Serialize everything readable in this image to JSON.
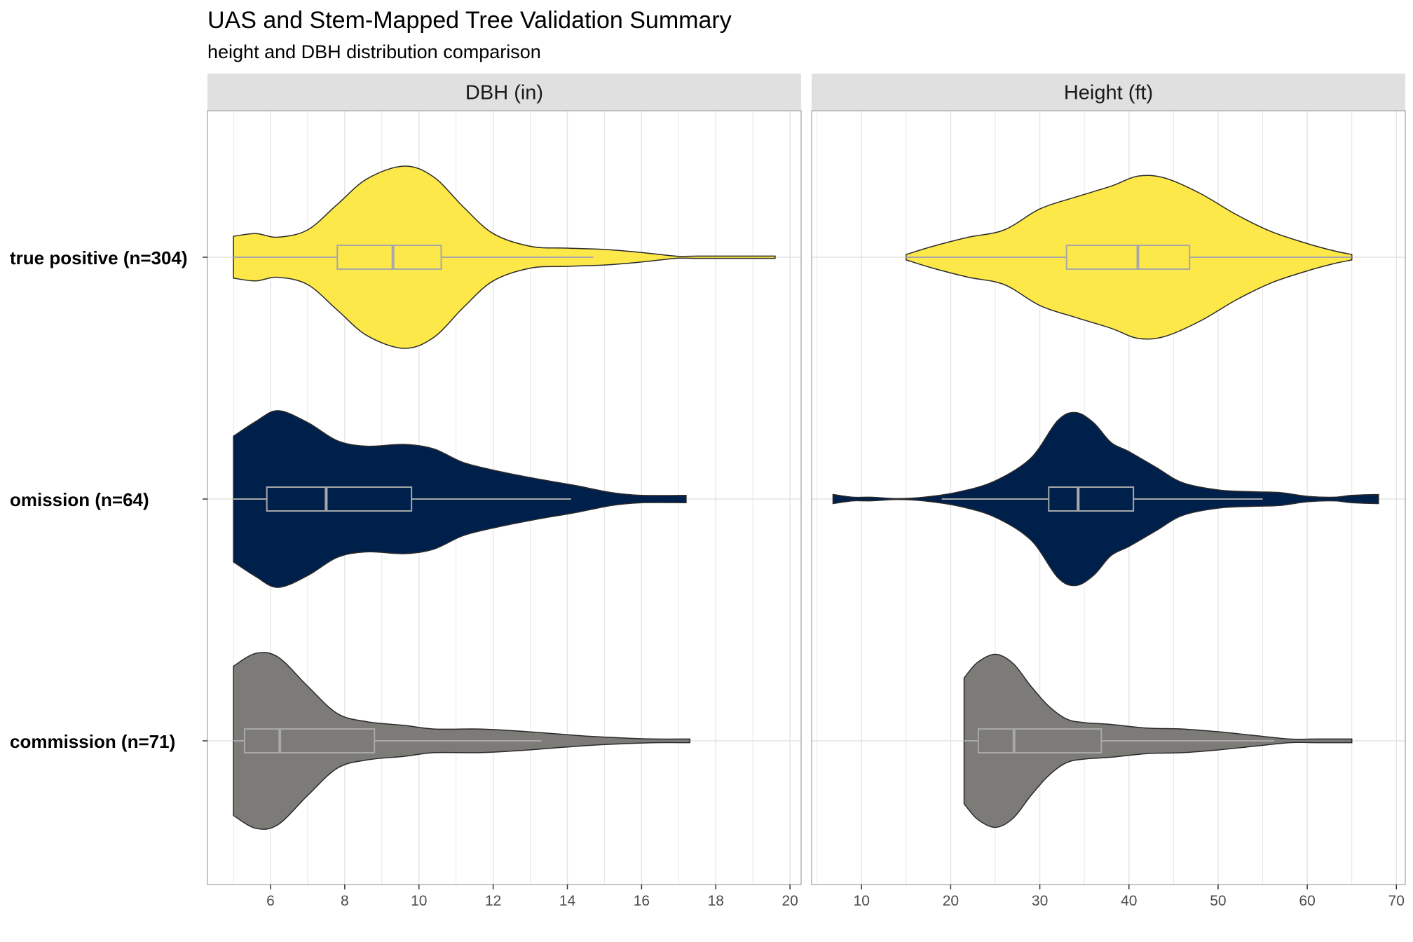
{
  "chart_data": {
    "type": "violin",
    "title": "UAS and Stem-Mapped Tree Validation Summary",
    "subtitle": "height and DBH distribution comparison",
    "categories": [
      "true positive (n=304)",
      "omission (n=64)",
      "commission (n=71)"
    ],
    "grid": true,
    "legend": "none",
    "colors": {
      "true positive (n=304)": "#FDE84A",
      "omission (n=64)": "#00204C",
      "commission (n=71)": "#7C7B78",
      "box": "#A8A8A8",
      "outline": "#2a2a2a",
      "grid": "#e3e3e3",
      "strip": "#e0e0e0",
      "panel_border": "#b3b3b3"
    },
    "panels": [
      {
        "label": "DBH (in)",
        "xlim": [
          4.3,
          20.3
        ],
        "xticks": [
          6,
          8,
          10,
          12,
          14,
          16,
          18,
          20
        ],
        "series": [
          {
            "name": "true positive (n=304)",
            "range": [
              5.0,
              19.6
            ],
            "density": [
              [
                5.0,
                0.23
              ],
              [
                5.6,
                0.26
              ],
              [
                6.2,
                0.22
              ],
              [
                7.0,
                0.3
              ],
              [
                7.8,
                0.58
              ],
              [
                8.6,
                0.86
              ],
              [
                9.6,
                1.0
              ],
              [
                10.4,
                0.88
              ],
              [
                11.2,
                0.55
              ],
              [
                12.0,
                0.26
              ],
              [
                13.0,
                0.12
              ],
              [
                14.0,
                0.1
              ],
              [
                15.0,
                0.085
              ],
              [
                15.8,
                0.06
              ],
              [
                16.5,
                0.03
              ],
              [
                17.0,
                0.01
              ],
              [
                17.5,
                0.012
              ],
              [
                18.5,
                0.012
              ],
              [
                19.6,
                0.012
              ]
            ],
            "box": {
              "q1": 7.8,
              "median": 9.3,
              "q3": 10.6,
              "whisker_low": 5.0,
              "whisker_high": 14.7
            }
          },
          {
            "name": "omission (n=64)",
            "range": [
              5.0,
              17.2
            ],
            "density": [
              [
                5.0,
                0.69
              ],
              [
                5.6,
                0.85
              ],
              [
                6.2,
                0.97
              ],
              [
                7.0,
                0.84
              ],
              [
                7.8,
                0.64
              ],
              [
                8.6,
                0.58
              ],
              [
                9.6,
                0.6
              ],
              [
                10.4,
                0.55
              ],
              [
                11.2,
                0.4
              ],
              [
                12.2,
                0.3
              ],
              [
                13.2,
                0.22
              ],
              [
                14.2,
                0.15
              ],
              [
                15.2,
                0.07
              ],
              [
                16.0,
                0.04
              ],
              [
                17.2,
                0.04
              ]
            ],
            "box": {
              "q1": 5.9,
              "median": 7.5,
              "q3": 9.8,
              "whisker_low": 5.0,
              "whisker_high": 14.1
            }
          },
          {
            "name": "commission (n=71)",
            "range": [
              5.0,
              17.3
            ],
            "density": [
              [
                5.0,
                0.82
              ],
              [
                5.6,
                0.96
              ],
              [
                6.2,
                0.92
              ],
              [
                7.0,
                0.6
              ],
              [
                7.8,
                0.3
              ],
              [
                8.6,
                0.21
              ],
              [
                9.6,
                0.17
              ],
              [
                10.4,
                0.13
              ],
              [
                11.6,
                0.13
              ],
              [
                12.6,
                0.11
              ],
              [
                13.6,
                0.08
              ],
              [
                14.6,
                0.05
              ],
              [
                15.6,
                0.03
              ],
              [
                16.4,
                0.02
              ],
              [
                17.3,
                0.02
              ]
            ],
            "box": {
              "q1": 5.3,
              "median": 6.25,
              "q3": 8.8,
              "whisker_low": 5.0,
              "whisker_high": 13.3
            }
          }
        ]
      },
      {
        "label": "Height (ft)",
        "xlim": [
          4.4,
          71.0
        ],
        "xticks": [
          10,
          20,
          30,
          40,
          50,
          60,
          70
        ],
        "series": [
          {
            "name": "true positive (n=304)",
            "range": [
              15,
              65
            ],
            "density": [
              [
                15,
                0.03
              ],
              [
                18,
                0.12
              ],
              [
                22,
                0.22
              ],
              [
                26,
                0.3
              ],
              [
                30,
                0.53
              ],
              [
                34,
                0.66
              ],
              [
                38,
                0.78
              ],
              [
                41,
                0.89
              ],
              [
                44,
                0.87
              ],
              [
                48,
                0.7
              ],
              [
                52,
                0.47
              ],
              [
                56,
                0.28
              ],
              [
                60,
                0.15
              ],
              [
                63,
                0.07
              ],
              [
                65,
                0.03
              ]
            ],
            "box": {
              "q1": 33,
              "median": 41,
              "q3": 46.8,
              "whisker_low": 15,
              "whisker_high": 65
            }
          },
          {
            "name": "omission (n=64)",
            "range": [
              6.8,
              68
            ],
            "density": [
              [
                6.8,
                0.05
              ],
              [
                9,
                0.02
              ],
              [
                11,
                0.02
              ],
              [
                14,
                0.005
              ],
              [
                17,
                0.02
              ],
              [
                21,
                0.08
              ],
              [
                25,
                0.2
              ],
              [
                29,
                0.45
              ],
              [
                32,
                0.86
              ],
              [
                34,
                0.95
              ],
              [
                36,
                0.84
              ],
              [
                38,
                0.62
              ],
              [
                40,
                0.52
              ],
              [
                43,
                0.35
              ],
              [
                46,
                0.18
              ],
              [
                50,
                0.1
              ],
              [
                54,
                0.08
              ],
              [
                57,
                0.07
              ],
              [
                60,
                0.03
              ],
              [
                63,
                0.02
              ],
              [
                65,
                0.04
              ],
              [
                68,
                0.05
              ]
            ],
            "box": {
              "q1": 31,
              "median": 34.3,
              "q3": 40.5,
              "whisker_low": 19,
              "whisker_high": 55
            }
          },
          {
            "name": "commission (n=71)",
            "range": [
              21.5,
              65
            ],
            "density": [
              [
                21.5,
                0.69
              ],
              [
                23,
                0.86
              ],
              [
                25,
                0.95
              ],
              [
                27,
                0.85
              ],
              [
                29,
                0.6
              ],
              [
                31,
                0.38
              ],
              [
                33,
                0.24
              ],
              [
                35,
                0.2
              ],
              [
                38,
                0.18
              ],
              [
                42,
                0.14
              ],
              [
                46,
                0.13
              ],
              [
                50,
                0.1
              ],
              [
                54,
                0.06
              ],
              [
                58,
                0.02
              ],
              [
                61,
                0.02
              ],
              [
                65,
                0.02
              ]
            ],
            "box": {
              "q1": 23.1,
              "median": 27.1,
              "q3": 36.9,
              "whisker_low": 21.5,
              "whisker_high": 56.3
            }
          }
        ]
      }
    ]
  }
}
